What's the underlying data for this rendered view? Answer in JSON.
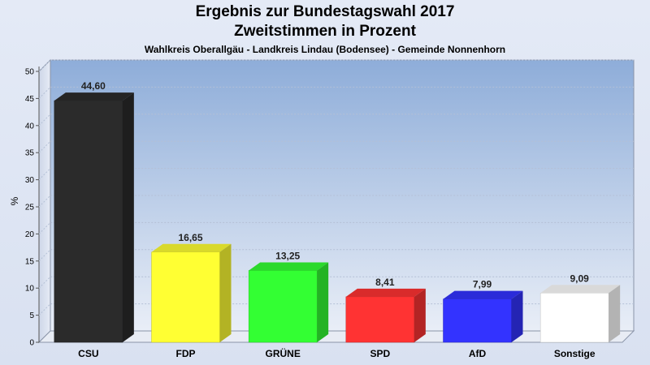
{
  "chart_data": {
    "type": "bar",
    "title": "Ergebnis zur Bundestagswahl 2017",
    "subtitle": "Zweitstimmen in Prozent",
    "caption": "Wahlkreis Oberallgäu - Landkreis Lindau (Bodensee) - Gemeinde Nonnenhorn",
    "xlabel": "",
    "ylabel": "%",
    "ylim": [
      0,
      50
    ],
    "yticks": [
      0,
      5,
      10,
      15,
      20,
      25,
      30,
      35,
      40,
      45,
      50
    ],
    "grid": true,
    "categories": [
      "CSU",
      "FDP",
      "GRÜNE",
      "SPD",
      "AfD",
      "Sonstige"
    ],
    "values": [
      44.6,
      16.65,
      13.25,
      8.41,
      7.99,
      9.09
    ],
    "value_labels": [
      "44,60",
      "16,65",
      "13,25",
      "8,41",
      "7,99",
      "9,09"
    ],
    "colors": [
      "#2b2b2b",
      "#ffff33",
      "#33ff33",
      "#ff3333",
      "#3333ff",
      "#ffffff"
    ]
  }
}
